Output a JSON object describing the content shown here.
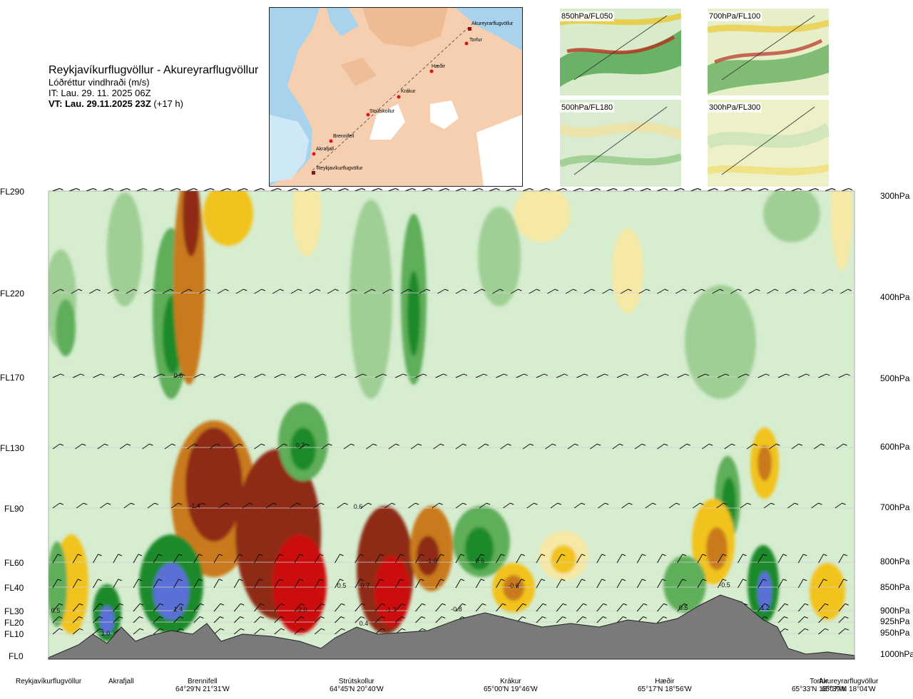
{
  "header": {
    "title": "Reykjavíkurflugvöllur - Akureyrarflugvöllur",
    "subtitle": "Lóðréttur vindhraði (m/s)",
    "it": "IT: Lau. 29. 11. 2025 06Z",
    "vt_bold": "VT: Lau. 29.11.2025 23Z",
    "vt_rest": " (+17 h)"
  },
  "map": {
    "stations": [
      "Akureyrarflugvöllur",
      "Torfur",
      "Hæðir",
      "Krákur",
      "Strútskollur",
      "Brennifell",
      "Akrafjall",
      "Reykjavíkurflugvöllur"
    ]
  },
  "thumbnails": [
    {
      "label": "850hPa/FL050"
    },
    {
      "label": "700hPa/FL100"
    },
    {
      "label": "500hPa/FL180"
    },
    {
      "label": "300hPa/FL300"
    }
  ],
  "left_axis": [
    "FL290",
    "FL220",
    "FL170",
    "FL130",
    "FL90",
    "FL60",
    "FL40",
    "FL30",
    "FL20",
    "FL10",
    "FL0"
  ],
  "right_axis": [
    "300hPa",
    "400hPa",
    "500hPa",
    "600hPa",
    "700hPa",
    "800hPa",
    "850hPa",
    "900hPa",
    "925hPa",
    "950hPa",
    "1000hPa"
  ],
  "bottom_labels": [
    {
      "name": "Reykjavíkurflugvöllur",
      "coord": ""
    },
    {
      "name": "Akrafjall",
      "coord": ""
    },
    {
      "name": "Brennifell",
      "coord": "64°29'N 21°31'W"
    },
    {
      "name": "Strútskollur",
      "coord": "64°45'N 20°40'W"
    },
    {
      "name": "Krákur",
      "coord": "65°00'N 19°46'W"
    },
    {
      "name": "Hæðir",
      "coord": "65°17'N 18°56'W"
    },
    {
      "name": "Torfur",
      "coord": "65°33'N 18°07'W"
    },
    {
      "name": "Akureyrarflugvöllur",
      "coord": "65°39'N 18°04'W"
    }
  ],
  "chart_data": {
    "type": "heatmap",
    "title": "Reykjavíkurflugvöllur - Akureyrarflugvöllur",
    "variable": "Lóðréttur vindhraði (m/s)",
    "y_left_levels": [
      "FL290",
      "FL220",
      "FL170",
      "FL130",
      "FL90",
      "FL60",
      "FL40",
      "FL30",
      "FL20",
      "FL10",
      "FL0"
    ],
    "y_right_levels": [
      "300hPa",
      "400hPa",
      "500hPa",
      "600hPa",
      "700hPa",
      "800hPa",
      "850hPa",
      "900hPa",
      "925hPa",
      "950hPa",
      "1000hPa"
    ],
    "x_waypoints": [
      "Reykjavíkurflugvöllur",
      "Akrafjall",
      "Brennifell",
      "Strútskollur",
      "Krákur",
      "Hæðir",
      "Torfur",
      "Akureyrarflugvöllur"
    ],
    "annotations": [
      {
        "text": "0.6",
        "level": "FL170",
        "near": "Brennifell"
      },
      {
        "text": "0.7",
        "level": "FL130",
        "near": "Strútskollur"
      },
      {
        "text": "-1.4",
        "level": "FL90",
        "near": "Brennifell"
      },
      {
        "text": "0.6",
        "level": "FL90",
        "near": "Strútskollur"
      },
      {
        "text": "-1.0",
        "level": "FL60",
        "near": "Krákur"
      },
      {
        "text": "0.6",
        "level": "FL60",
        "near": "Krákur"
      },
      {
        "text": "-0.6",
        "level": "FL40",
        "near": "Krákur"
      },
      {
        "text": "-0.5",
        "level": "FL40",
        "near": "Torfur"
      },
      {
        "text": "0.5",
        "level": "FL40",
        "near": "Strútskollur"
      },
      {
        "text": "0.7",
        "level": "FL40",
        "near": "Strútskollur"
      },
      {
        "text": "1.4",
        "level": "FL30",
        "near": "Brennifell"
      },
      {
        "text": "-2.0",
        "level": "FL30",
        "near": "Brennifell"
      },
      {
        "text": "-1.7",
        "level": "FL30",
        "near": "Strútskollur"
      },
      {
        "text": "-0.8",
        "level": "FL30",
        "near": "Krákur"
      },
      {
        "text": "0.5",
        "level": "FL30",
        "near": "Hæðir"
      },
      {
        "text": "1.2",
        "level": "FL30",
        "near": "Torfur"
      },
      {
        "text": "0.5",
        "level": "FL30",
        "near": "Reykjavíkurflugvöllur"
      },
      {
        "text": "1.0",
        "level": "FL10",
        "near": "Akrafjall"
      },
      {
        "text": "0.4",
        "level": "FL20",
        "near": "Strútskollur"
      }
    ],
    "colors": {
      "strong_up": "#5a6fd6",
      "up_3": "#1f8a2b",
      "up_2": "#5fae5a",
      "up_1": "#9fcf94",
      "neutral": "#d6edd0",
      "down_1": "#f6e9a6",
      "down_2": "#f2c31c",
      "down_3": "#c97a1c",
      "down_4": "#8e2a12",
      "strong_down": "#cc1010",
      "terrain": "#7a7a7a"
    }
  }
}
